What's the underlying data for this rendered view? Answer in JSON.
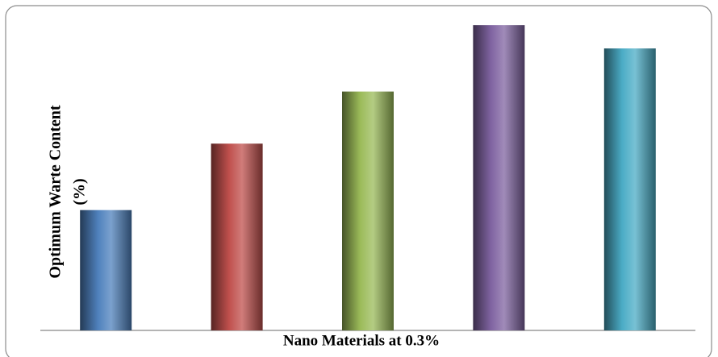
{
  "chart_data": {
    "type": "bar",
    "xlabel": "Nano Materials at 0.3%",
    "ylabel": [
      "Optimum Warte Content",
      "(%)"
    ],
    "categories": [
      null,
      null,
      null,
      null,
      null
    ],
    "values": [
      134,
      208,
      266,
      340,
      314
    ],
    "colors": [
      "#4f81bd",
      "#c0504d",
      "#9bbb59",
      "#8064a2",
      "#4bacc6"
    ],
    "ylim": [
      0,
      350
    ]
  }
}
